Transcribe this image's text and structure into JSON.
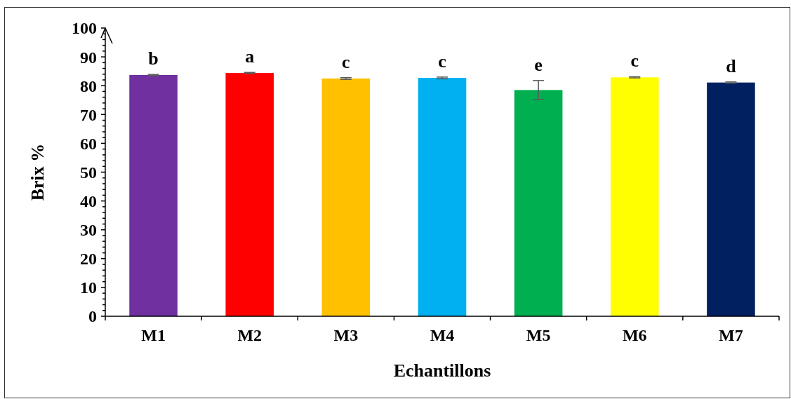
{
  "chart_data": {
    "type": "bar",
    "xlabel": "Echantillons",
    "ylabel": "Brix %",
    "categories": [
      "M1",
      "M2",
      "M3",
      "M4",
      "M5",
      "M6",
      "M7"
    ],
    "values": [
      83.7,
      84.4,
      82.5,
      82.7,
      78.5,
      82.9,
      81.1
    ],
    "colors": [
      "#7030a0",
      "#ff0000",
      "#ffc000",
      "#00b0f0",
      "#00b050",
      "#ffff00",
      "#002060"
    ],
    "errors": [
      0.2,
      0.2,
      0.3,
      0.3,
      3.3,
      0.2,
      0.2
    ],
    "ylim": [
      0,
      100
    ],
    "yticks": [
      0,
      {
        "value": 2,
        "label": null
      },
      {
        "value": 4,
        "label": null
      },
      {
        "value": 6,
        "label": null
      },
      {
        "value": 8,
        "label": null
      },
      10,
      {
        "value": 12,
        "label": null
      },
      {
        "value": 14,
        "label": null
      },
      {
        "value": 16,
        "label": null
      },
      {
        "value": 18,
        "label": null
      },
      20,
      {
        "value": 22,
        "label": null
      },
      {
        "value": 24,
        "label": null
      },
      {
        "value": 26,
        "label": null
      },
      {
        "value": 28,
        "label": null
      },
      30,
      {
        "value": 32,
        "label": null
      },
      {
        "value": 34,
        "label": null
      },
      {
        "value": 36,
        "label": null
      },
      {
        "value": 38,
        "label": null
      },
      40,
      {
        "value": 42,
        "label": null
      },
      {
        "value": 44,
        "label": null
      },
      {
        "value": 46,
        "label": null
      },
      {
        "value": 48,
        "label": null
      },
      50,
      {
        "value": 52,
        "label": null
      },
      {
        "value": 54,
        "label": null
      },
      {
        "value": 56,
        "label": null
      },
      {
        "value": 58,
        "label": null
      },
      60,
      {
        "value": 62,
        "label": null
      },
      {
        "value": 64,
        "label": null
      },
      {
        "value": 66,
        "label": null
      },
      {
        "value": 68,
        "label": null
      },
      70,
      {
        "value": 72,
        "label": null
      },
      {
        "value": 74,
        "label": null
      },
      {
        "value": 76,
        "label": null
      },
      {
        "value": 78,
        "label": null
      },
      80,
      {
        "value": 82,
        "label": null
      },
      {
        "value": 84,
        "label": null
      },
      {
        "value": 86,
        "label": null
      },
      {
        "value": 88,
        "label": null
      },
      90,
      {
        "value": 92,
        "label": null
      },
      {
        "value": 94,
        "label": null
      },
      {
        "value": 96,
        "label": null
      },
      {
        "value": 98,
        "label": null
      },
      100
    ],
    "annotations": [
      "b",
      "a",
      "c",
      "c",
      "e",
      "c",
      "d"
    ]
  }
}
